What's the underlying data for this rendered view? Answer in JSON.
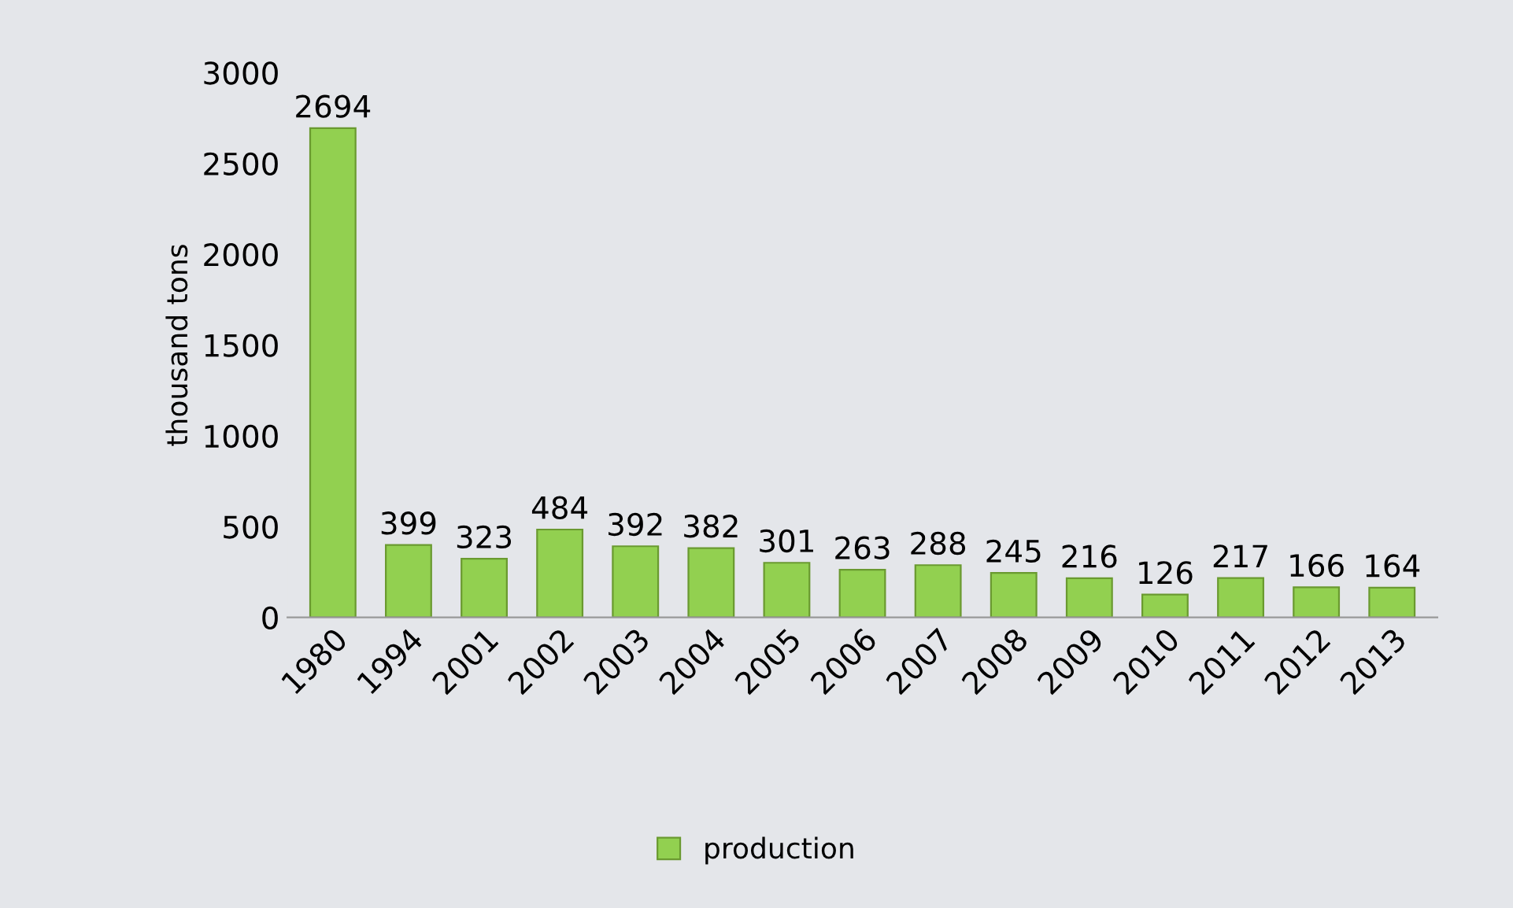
{
  "chart_data": {
    "type": "bar",
    "ylabel": "thousand tons",
    "categories": [
      "1980",
      "1994",
      "2001",
      "2002",
      "2003",
      "2004",
      "2005",
      "2006",
      "2007",
      "2008",
      "2009",
      "2010",
      "2011",
      "2012",
      "2013"
    ],
    "series": [
      {
        "name": "production",
        "color": "#92d050",
        "values": [
          2694,
          399,
          323,
          484,
          392,
          382,
          301,
          263,
          288,
          245,
          216,
          126,
          217,
          166,
          164
        ]
      }
    ],
    "ylim": [
      0,
      3000
    ],
    "yticks": [
      0,
      500,
      1000,
      1500,
      2000,
      2500,
      3000
    ],
    "data_labels": true,
    "legend": "bottom",
    "grid": false
  }
}
